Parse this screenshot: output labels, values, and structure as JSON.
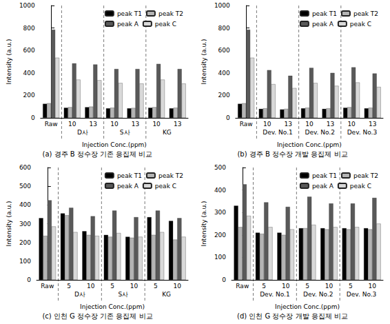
{
  "chart_data": [
    {
      "type": "bar",
      "title": "(a) 경주 B 정수장 기존 응집제 비교",
      "x_label": "Injection Conc.(ppm)",
      "y_label": "Intensity (a.u.)",
      "categories": [
        "Raw",
        "10",
        "13",
        "10",
        "13",
        "10",
        "13"
      ],
      "group_labels": [
        "D사",
        "S사",
        "KG"
      ],
      "series": [
        {
          "name": "peak T1",
          "color": "#000000",
          "values": [
            125,
            90,
            95,
            85,
            85,
            90,
            85
          ]
        },
        {
          "name": "peak T2",
          "color": "#b4b4b4",
          "values": [
            130,
            95,
            100,
            90,
            88,
            95,
            90
          ]
        },
        {
          "name": "peak A",
          "color": "#595959",
          "values": [
            785,
            485,
            475,
            435,
            435,
            480,
            435
          ]
        },
        {
          "name": "peak C",
          "color": "#d9d9d9",
          "values": [
            535,
            340,
            335,
            310,
            305,
            340,
            305
          ]
        }
      ],
      "ylim": [
        0,
        1000
      ],
      "yticks": [
        0,
        200,
        400,
        600,
        800,
        1000
      ],
      "legend": "upper right"
    },
    {
      "type": "bar",
      "title": "(b) 경주 B 정수장 개발 응집제 비교",
      "x_label": "Injection Conc.(ppm)",
      "y_label": "Intensity (a.u.)",
      "categories": [
        "Raw",
        "10",
        "13",
        "10",
        "13",
        "10",
        "13"
      ],
      "group_labels": [
        "Dev. No.1",
        "Dev. No.2",
        "Dev. No.3"
      ],
      "series": [
        {
          "name": "peak T1",
          "color": "#000000",
          "values": [
            125,
            80,
            75,
            85,
            80,
            90,
            85
          ]
        },
        {
          "name": "peak T2",
          "color": "#b4b4b4",
          "values": [
            130,
            85,
            80,
            90,
            85,
            95,
            90
          ]
        },
        {
          "name": "peak A",
          "color": "#595959",
          "values": [
            785,
            425,
            375,
            445,
            400,
            450,
            395
          ]
        },
        {
          "name": "peak C",
          "color": "#d9d9d9",
          "values": [
            535,
            300,
            265,
            310,
            285,
            315,
            275
          ]
        }
      ],
      "ylim": [
        0,
        1000
      ],
      "yticks": [
        0,
        200,
        400,
        600,
        800,
        1000
      ],
      "legend": "upper right"
    },
    {
      "type": "bar",
      "title": "(c) 인천 G 정수장 기존 응집제 비교",
      "x_label": "Injection Conc.(ppm)",
      "y_label": "Intensity (a.u.)",
      "categories": [
        "Raw",
        "5",
        "10",
        "5",
        "10",
        "5",
        "10"
      ],
      "group_labels": [
        "D사",
        "S사",
        "KG"
      ],
      "series": [
        {
          "name": "peak T1",
          "color": "#000000",
          "values": [
            330,
            355,
            260,
            240,
            230,
            335,
            315
          ]
        },
        {
          "name": "peak T2",
          "color": "#b4b4b4",
          "values": [
            235,
            345,
            240,
            230,
            225,
            240,
            215
          ]
        },
        {
          "name": "peak A",
          "color": "#595959",
          "values": [
            425,
            385,
            340,
            370,
            335,
            370,
            330
          ]
        },
        {
          "name": "peak C",
          "color": "#d9d9d9",
          "values": [
            285,
            255,
            235,
            250,
            230,
            255,
            230
          ]
        }
      ],
      "ylim": [
        0,
        600
      ],
      "yticks": [
        0,
        100,
        200,
        300,
        400,
        500,
        600
      ],
      "legend": "upper right"
    },
    {
      "type": "bar",
      "title": "(d) 인천 G 정수장 개발 응집제 비교",
      "x_label": "Injection Conc.(ppm)",
      "y_label": "Intensity (a.u.)",
      "categories": [
        "Raw",
        "5",
        "10",
        "5",
        "10",
        "5",
        "10"
      ],
      "group_labels": [
        "Dev. No.1",
        "Dev. No.2",
        "Dev. No.3"
      ],
      "series": [
        {
          "name": "peak T1",
          "color": "#000000",
          "values": [
            330,
            210,
            210,
            230,
            230,
            230,
            230
          ]
        },
        {
          "name": "peak T2",
          "color": "#b4b4b4",
          "values": [
            235,
            205,
            200,
            230,
            225,
            225,
            225
          ]
        },
        {
          "name": "peak A",
          "color": "#595959",
          "values": [
            425,
            345,
            325,
            370,
            340,
            340,
            365
          ]
        },
        {
          "name": "peak C",
          "color": "#d9d9d9",
          "values": [
            285,
            235,
            225,
            245,
            235,
            235,
            250
          ]
        }
      ],
      "ylim": [
        0,
        500
      ],
      "yticks": [
        0,
        100,
        200,
        300,
        400,
        500
      ],
      "legend": "upper right"
    }
  ]
}
